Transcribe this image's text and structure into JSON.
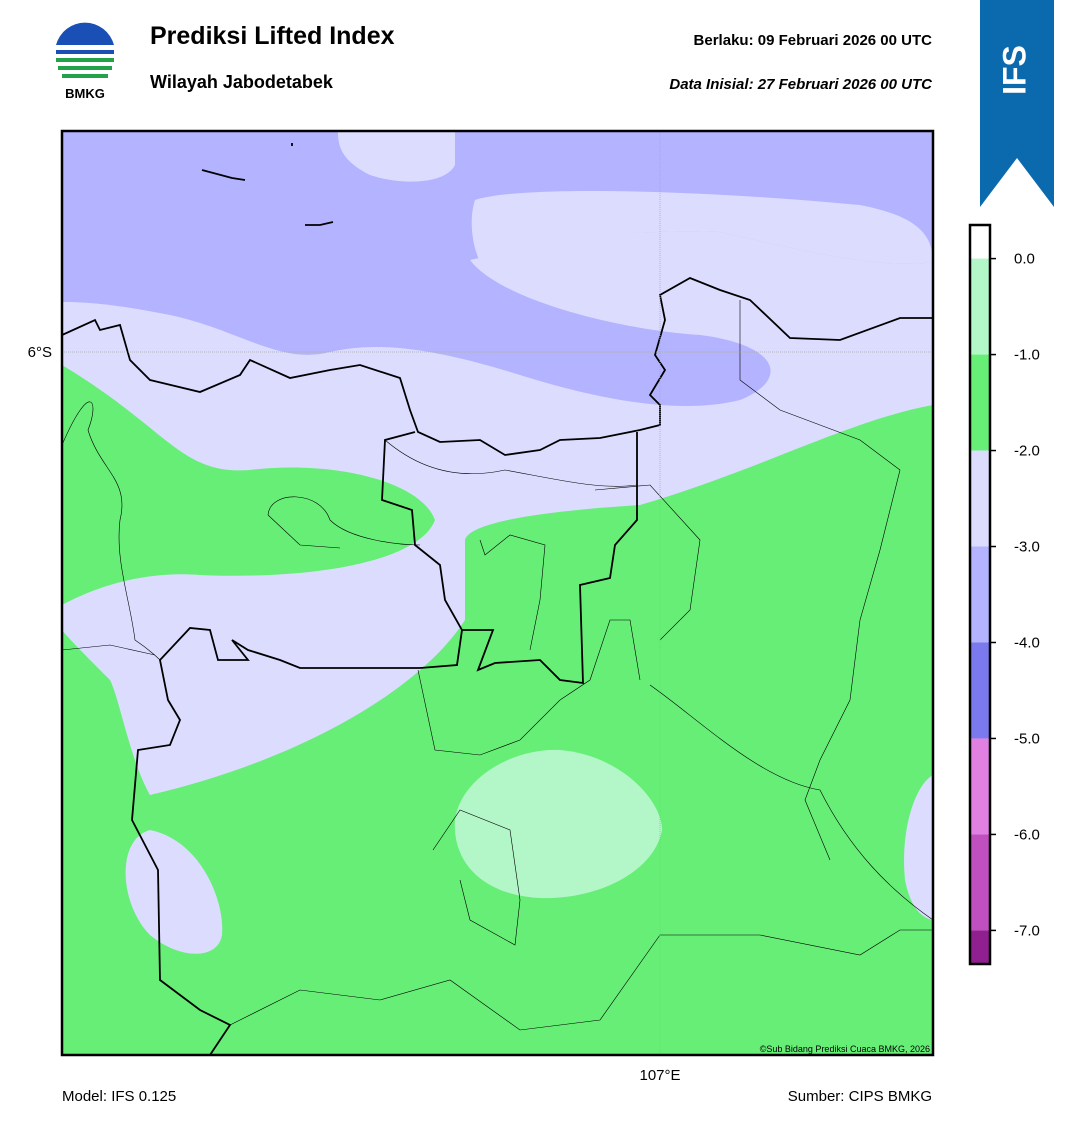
{
  "header": {
    "title": "Prediksi Lifted Index",
    "subtitle": "Wilayah Jabodetabek",
    "valid": "Berlaku:  09 Februari 2026 00 UTC",
    "init": "Data Inisial:  27 Februari 2026 00 UTC",
    "logo": "BMKG",
    "badge": "IFS"
  },
  "map": {
    "lat_label": "6°S",
    "lon_label": "107°E",
    "credit": "©Sub Bidang Prediksi Cuaca BMKG, 2026"
  },
  "colorbar": {
    "clim": [
      -7.35,
      0.35
    ],
    "ticks": [
      {
        "value": 0,
        "label": "0.0"
      },
      {
        "value": -1,
        "label": "-1.0"
      },
      {
        "value": -2,
        "label": "-2.0"
      },
      {
        "value": -3,
        "label": "-3.0"
      },
      {
        "value": -4,
        "label": "-4.0"
      },
      {
        "value": -5,
        "label": "-5.0"
      },
      {
        "value": -6,
        "label": "-6.0"
      },
      {
        "value": -7,
        "label": "-7.0"
      }
    ],
    "colors": [
      "#ffffff",
      "#b3f7c8",
      "#66ee77",
      "#dcdcff",
      "#b3b3ff",
      "#7a7aee",
      "#e080e0",
      "#c050c0",
      "#902090"
    ]
  },
  "footer": {
    "model": "Model: IFS 0.125",
    "source": "Sumber: CIPS BMKG"
  }
}
